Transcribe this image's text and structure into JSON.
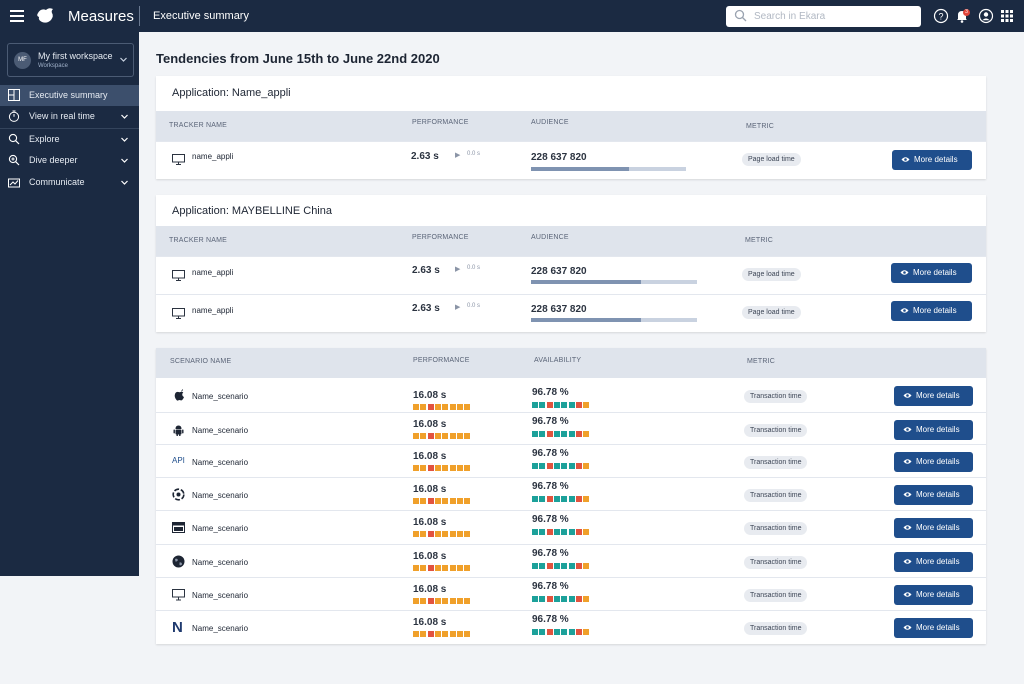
{
  "topbar": {
    "app_name": "Measures",
    "page_name": "Executive summary",
    "search_placeholder": "Search in Ekara",
    "notification_count": "3",
    "icons": [
      "menu-icon",
      "logo-icon",
      "search-icon",
      "help-icon",
      "bell-icon",
      "user-icon",
      "apps-grid-icon"
    ]
  },
  "workspace": {
    "avatar": "MF",
    "name": "My first workspace",
    "subtitle": "Workspace"
  },
  "sidebar": {
    "items": [
      {
        "label": "Executive summary",
        "icon": "dashboard-icon",
        "active": true
      },
      {
        "label": "View in real time",
        "icon": "stopwatch-icon"
      },
      {
        "label": "Explore",
        "icon": "search-icon"
      },
      {
        "label": "Dive deeper",
        "icon": "zoom-icon"
      },
      {
        "label": "Communicate",
        "icon": "chart-icon"
      }
    ]
  },
  "main": {
    "title": "Tendencies from June 15th to June 22nd 2020"
  },
  "headers": {
    "tracker": "TRACKER NAME",
    "scenario": "SCENARIO NAME",
    "performance": "PERFORMANCE",
    "audience": "AUDIENCE",
    "availability": "AVAILABILITY",
    "metric": "METRIC"
  },
  "more_details_label": "More details",
  "apps": [
    {
      "title": "Application: Name_appli",
      "rows": [
        {
          "name": "name_appli",
          "perf": "2.63 s",
          "delta": "0.0 s",
          "audience": "228 637 820",
          "audience_share": 0.63,
          "metric": "Page load time"
        }
      ]
    },
    {
      "title": "Application: MAYBELLINE China",
      "rows": [
        {
          "name": "name_appli",
          "perf": "2.63 s",
          "delta": "0.0 s",
          "audience": "228 637 820",
          "audience_share": 0.66,
          "metric": "Page load time"
        },
        {
          "name": "name_appli",
          "perf": "2.63 s",
          "delta": "0.0 s",
          "audience": "228 637 820",
          "audience_share": 0.66,
          "metric": "Page load time"
        }
      ]
    }
  ],
  "scenarios": [
    {
      "icon": "apple-icon",
      "name": "Name_scenario",
      "perf": "16.08 s",
      "availability": "96.78 %",
      "metric": "Transaction time"
    },
    {
      "icon": "android-icon",
      "name": "Name_scenario",
      "perf": "16.08 s",
      "availability": "96.78 %",
      "metric": "Transaction time"
    },
    {
      "icon": "api-icon",
      "icon_text": "API",
      "name": "Name_scenario",
      "perf": "16.08 s",
      "availability": "96.78 %",
      "metric": "Transaction time"
    },
    {
      "icon": "chrome-icon",
      "name": "Name_scenario",
      "perf": "16.08 s",
      "availability": "96.78 %",
      "metric": "Transaction time"
    },
    {
      "icon": "window-icon",
      "name": "Name_scenario",
      "perf": "16.08 s",
      "availability": "96.78 %",
      "metric": "Transaction time"
    },
    {
      "icon": "globe-icon",
      "name": "Name_scenario",
      "perf": "16.08 s",
      "availability": "96.78 %",
      "metric": "Transaction time"
    },
    {
      "icon": "desktop-icon",
      "name": "Name_scenario",
      "perf": "16.08 s",
      "availability": "96.78 %",
      "metric": "Transaction time"
    },
    {
      "icon": "n-logo-icon",
      "icon_text": "N",
      "name": "Name_scenario",
      "perf": "16.08 s",
      "availability": "96.78 %",
      "metric": "Transaction time"
    }
  ],
  "perf_trend": [
    "orange",
    "orange",
    "red",
    "orange",
    "orange",
    "orange",
    "orange",
    "orange"
  ],
  "availability_trend": [
    "teal",
    "teal",
    "red",
    "teal",
    "teal",
    "teal",
    "red",
    "orange"
  ],
  "colors": {
    "orange": "#f0a02a",
    "red": "#e2533f",
    "teal": "#1ca19a",
    "button": "#1f4e8c",
    "sidebar": "#1b2a42"
  }
}
